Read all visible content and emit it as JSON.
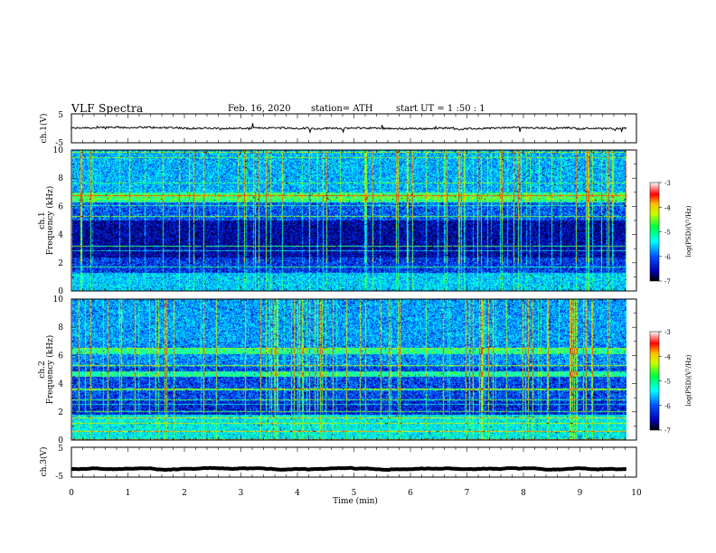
{
  "header": {
    "title": "VLF  Spectra",
    "date": "Feb. 16, 2020",
    "station": "station= ATH",
    "start_ut": "start  UT  =   1  :50 : 1"
  },
  "chart_data": [
    {
      "type": "line",
      "panel": "ch1-waveform",
      "ylabel": "ch.1(V)",
      "ylim": [
        -5,
        5
      ],
      "yticks": [
        "5",
        "-5"
      ],
      "x_range_min": [
        0,
        9.82
      ],
      "baseline_v": 0,
      "noise_amplitude_v": 0.6
    },
    {
      "type": "heatmap",
      "panel": "ch1-spectrogram",
      "ylabel": "ch.1\nFrequency (kHz)",
      "ylim": [
        0,
        10
      ],
      "yticks": [
        "0",
        "2",
        "4",
        "6",
        "8",
        "10"
      ],
      "x_range_min": [
        0,
        9.82
      ],
      "colorbar": {
        "label": "log(PSD)(V²/Hz)",
        "range": [
          -7,
          -3
        ],
        "ticks": [
          "-3",
          "-4",
          "-5",
          "-6",
          "-7"
        ]
      }
    },
    {
      "type": "heatmap",
      "panel": "ch2-spectrogram",
      "ylabel": "ch.2\nFrequency (kHz)",
      "ylim": [
        0,
        10
      ],
      "yticks": [
        "0",
        "2",
        "4",
        "6",
        "8",
        "10"
      ],
      "x_range_min": [
        0,
        9.82
      ],
      "colorbar": {
        "label": "log(PSD)(V²/Hz)",
        "range": [
          -7,
          -3
        ],
        "ticks": [
          "-3",
          "-4",
          "-5",
          "-6",
          "-7"
        ]
      }
    },
    {
      "type": "line",
      "panel": "ch3-waveform",
      "ylabel": "ch.3(V)",
      "ylim": [
        -5,
        5
      ],
      "yticks": [
        "5",
        "-5"
      ],
      "x_range_min": [
        0,
        9.82
      ],
      "baseline_v": -2.3,
      "noise_amplitude_v": 0.05
    }
  ],
  "x_axis": {
    "label": "Time  (min)",
    "range": [
      0,
      10
    ],
    "ticks": [
      "0",
      "1",
      "2",
      "3",
      "4",
      "5",
      "6",
      "7",
      "8",
      "9",
      "10"
    ]
  },
  "colors": {
    "frame": "#000000",
    "waveform": "#000000",
    "colormap": [
      "#000040",
      "#0000c8",
      "#0060ff",
      "#00d0ff",
      "#00ffa0",
      "#a0ff00",
      "#ffff00",
      "#ff8000",
      "#ff0000",
      "#ffffff"
    ]
  }
}
